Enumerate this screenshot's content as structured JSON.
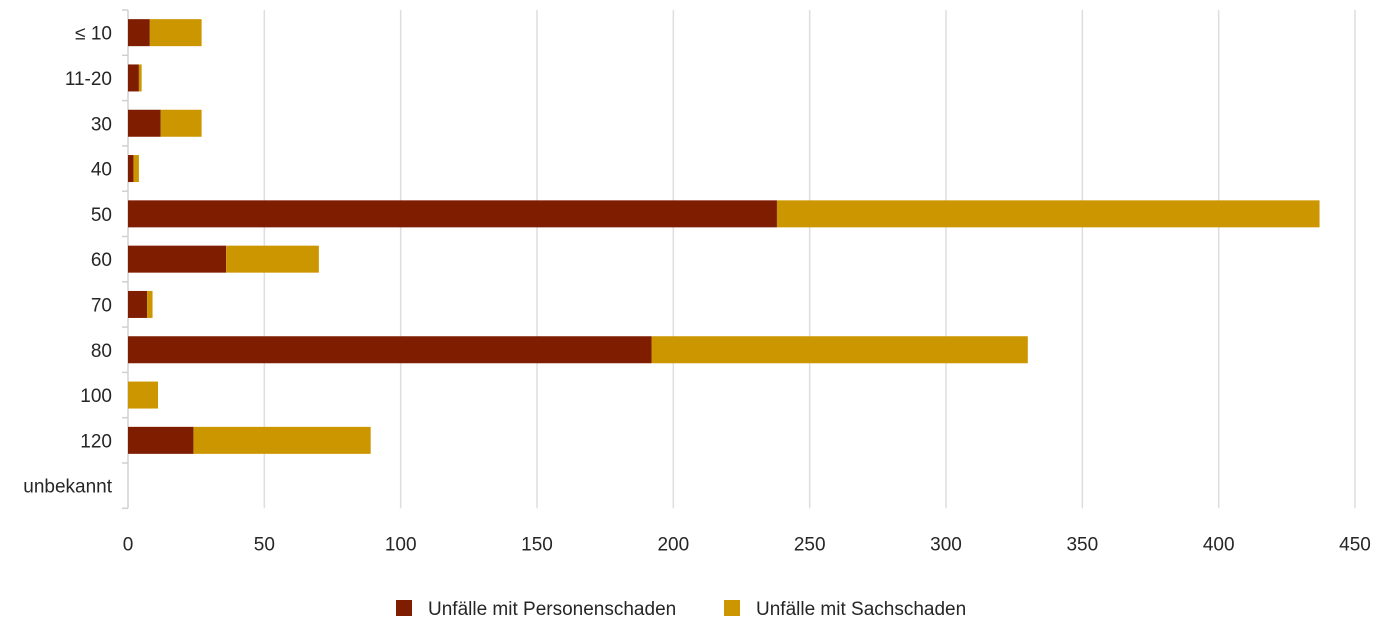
{
  "chart_data": {
    "type": "bar",
    "orientation": "horizontal",
    "stacked": true,
    "categories": [
      "≤ 10",
      "11-20",
      "30",
      "40",
      "50",
      "60",
      "70",
      "80",
      "100",
      "120",
      "unbekannt"
    ],
    "series": [
      {
        "name": "Unfälle mit Personenschaden",
        "color": "#7f1d00",
        "values": [
          8,
          4,
          12,
          2,
          238,
          36,
          7,
          192,
          0,
          24,
          0
        ]
      },
      {
        "name": "Unfälle mit Sachschaden",
        "color": "#cc9600",
        "values": [
          19,
          1,
          15,
          2,
          199,
          34,
          2,
          138,
          11,
          65,
          0
        ]
      }
    ],
    "xlim": [
      0,
      450
    ],
    "xticks": [
      "0",
      "50",
      "100",
      "150",
      "200",
      "250",
      "300",
      "350",
      "400",
      "450"
    ],
    "grid": true,
    "legend_position": "bottom-center",
    "title": "",
    "xlabel": "",
    "ylabel": ""
  }
}
